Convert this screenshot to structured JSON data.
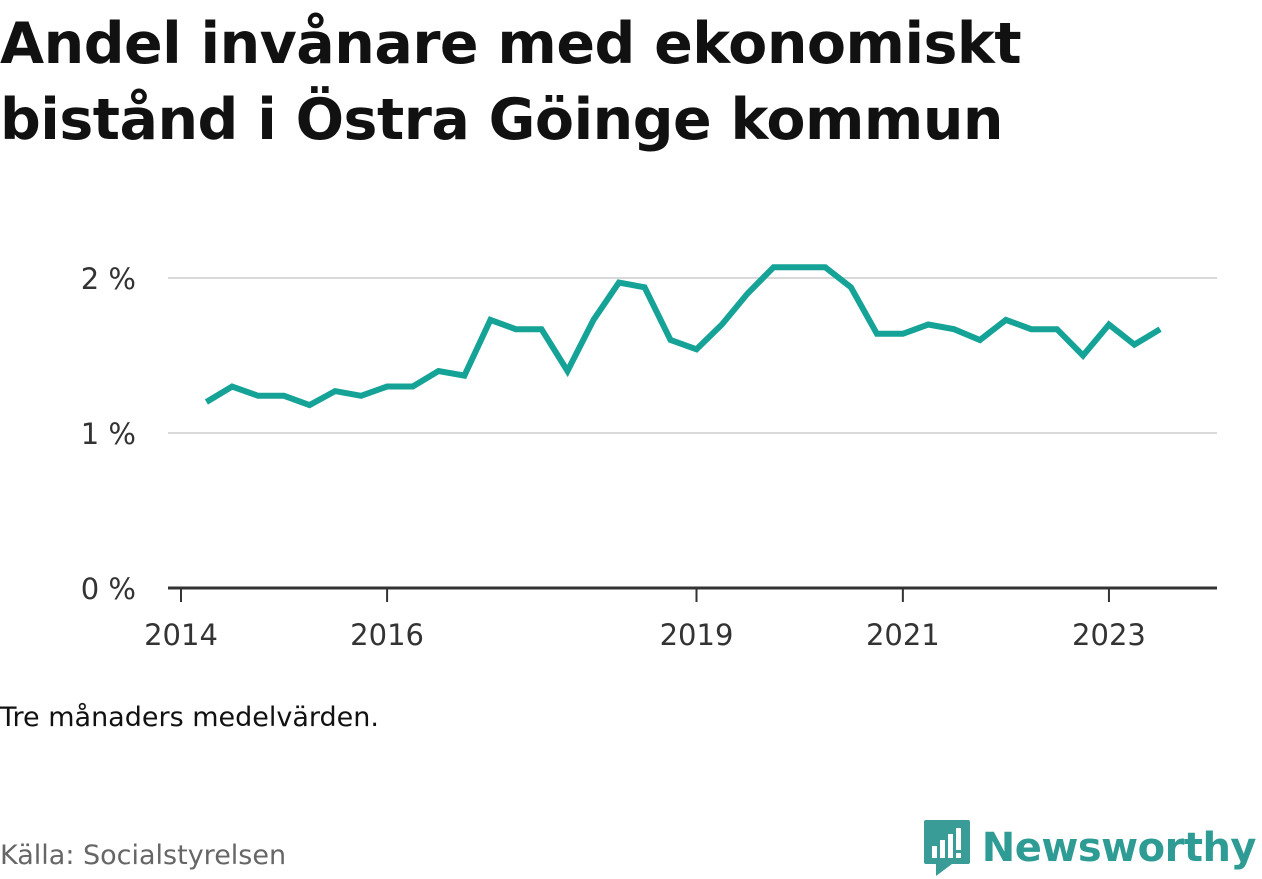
{
  "chart_data": {
    "type": "line",
    "title": "Andel invånare med ekonomiskt bistånd i Östra Göinge kommun",
    "note": "Tre månaders medelvärden.",
    "source": "Källa: Socialstyrelsen",
    "brand": "Newsworthy",
    "line_color": "#14a396",
    "ylim": [
      0,
      2.2
    ],
    "y_ticks": [
      {
        "value": 0,
        "label": "0 %"
      },
      {
        "value": 1,
        "label": "1 %"
      },
      {
        "value": 2,
        "label": "2 %"
      }
    ],
    "x_range": [
      "2014-01-01",
      "2024-01-01"
    ],
    "x_ticks": [
      {
        "date": "2014-01-01",
        "label": "2014"
      },
      {
        "date": "2016-01-01",
        "label": "2016"
      },
      {
        "date": "2019-01-01",
        "label": "2019"
      },
      {
        "date": "2021-01-01",
        "label": "2021"
      },
      {
        "date": "2023-01-01",
        "label": "2023"
      }
    ],
    "series": [
      {
        "points": [
          {
            "x": "2014-04-01",
            "y": 1.2
          },
          {
            "x": "2014-07-01",
            "y": 1.3
          },
          {
            "x": "2014-10-01",
            "y": 1.24
          },
          {
            "x": "2015-01-01",
            "y": 1.24
          },
          {
            "x": "2015-04-01",
            "y": 1.18
          },
          {
            "x": "2015-07-01",
            "y": 1.27
          },
          {
            "x": "2015-10-01",
            "y": 1.24
          },
          {
            "x": "2016-01-01",
            "y": 1.3
          },
          {
            "x": "2016-04-01",
            "y": 1.3
          },
          {
            "x": "2016-07-01",
            "y": 1.4
          },
          {
            "x": "2016-10-01",
            "y": 1.37
          },
          {
            "x": "2017-01-01",
            "y": 1.73
          },
          {
            "x": "2017-04-01",
            "y": 1.67
          },
          {
            "x": "2017-07-01",
            "y": 1.67
          },
          {
            "x": "2017-10-01",
            "y": 1.4
          },
          {
            "x": "2018-01-01",
            "y": 1.73
          },
          {
            "x": "2018-04-01",
            "y": 1.97
          },
          {
            "x": "2018-07-01",
            "y": 1.94
          },
          {
            "x": "2018-10-01",
            "y": 1.6
          },
          {
            "x": "2019-01-01",
            "y": 1.54
          },
          {
            "x": "2019-04-01",
            "y": 1.7
          },
          {
            "x": "2019-07-01",
            "y": 1.9
          },
          {
            "x": "2019-10-01",
            "y": 2.07
          },
          {
            "x": "2020-01-01",
            "y": 2.07
          },
          {
            "x": "2020-04-01",
            "y": 2.07
          },
          {
            "x": "2020-07-01",
            "y": 1.94
          },
          {
            "x": "2020-10-01",
            "y": 1.64
          },
          {
            "x": "2021-01-01",
            "y": 1.64
          },
          {
            "x": "2021-04-01",
            "y": 1.7
          },
          {
            "x": "2021-07-01",
            "y": 1.67
          },
          {
            "x": "2021-10-01",
            "y": 1.6
          },
          {
            "x": "2022-01-01",
            "y": 1.73
          },
          {
            "x": "2022-04-01",
            "y": 1.67
          },
          {
            "x": "2022-07-01",
            "y": 1.67
          },
          {
            "x": "2022-10-01",
            "y": 1.5
          },
          {
            "x": "2023-01-01",
            "y": 1.7
          },
          {
            "x": "2023-04-01",
            "y": 1.57
          },
          {
            "x": "2023-07-01",
            "y": 1.67
          }
        ]
      }
    ]
  }
}
